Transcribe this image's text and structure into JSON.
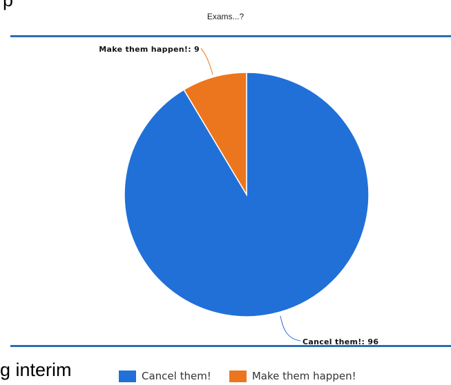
{
  "page": {
    "top_text": "p",
    "bottom_text": "g interim"
  },
  "chart_data": {
    "type": "pie",
    "title": "Exams...?",
    "slices": [
      {
        "label": "Cancel them!",
        "value": 96,
        "color": "#2170d8",
        "data_label": "Cancel them!: 96"
      },
      {
        "label": "Make them happen!",
        "value": 9,
        "color": "#ec761d",
        "data_label": "Make them happen!: 9"
      }
    ],
    "start": "12 o'clock",
    "direction": "counter-clockwise from Cancel them!",
    "legend": {
      "placement": "bottom",
      "entries": [
        "Cancel them!",
        "Make them happen!"
      ]
    }
  }
}
